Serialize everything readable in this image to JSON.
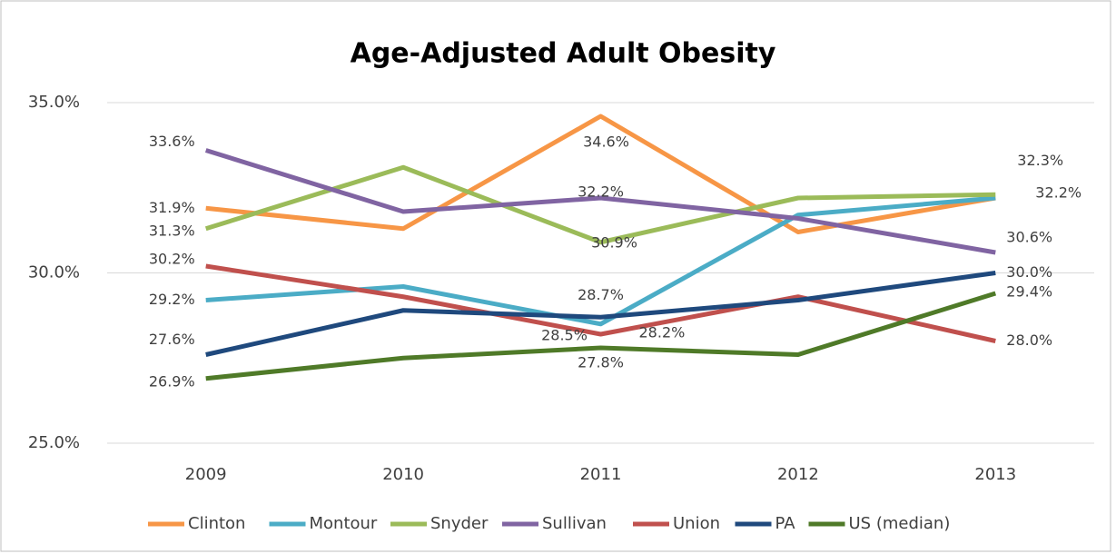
{
  "chart_data": {
    "type": "line",
    "title": "Age-Adjusted Adult Obesity",
    "categories": [
      "2009",
      "2010",
      "2011",
      "2012",
      "2013"
    ],
    "ylim": [
      25,
      35
    ],
    "yticks": [
      {
        "value": 25,
        "label": "25.0%"
      },
      {
        "value": 30,
        "label": "30.0%"
      },
      {
        "value": 35,
        "label": "35.0%"
      }
    ],
    "grid": true,
    "legend": "bottom",
    "series": [
      {
        "name": "Clinton",
        "color": "#f79646",
        "values": [
          31.9,
          31.3,
          34.6,
          31.2,
          32.2
        ],
        "value_labels": [
          "31.9%",
          null,
          "34.6%",
          null,
          null
        ]
      },
      {
        "name": "Montour",
        "color": "#4bacc6",
        "values": [
          29.2,
          29.6,
          28.5,
          31.7,
          32.2
        ],
        "value_labels": [
          "29.2%",
          null,
          "28.5%",
          null,
          "32.2%"
        ]
      },
      {
        "name": "Snyder",
        "color": "#9bbb59",
        "values": [
          31.3,
          33.1,
          30.9,
          32.2,
          32.3
        ],
        "value_labels": [
          "31.3%",
          null,
          "30.9%",
          null,
          "32.3%"
        ]
      },
      {
        "name": "Sullivan",
        "color": "#8064a2",
        "values": [
          33.6,
          31.8,
          32.2,
          31.6,
          30.6
        ],
        "value_labels": [
          "33.6%",
          null,
          "32.2%",
          null,
          "30.6%"
        ]
      },
      {
        "name": "Union",
        "color": "#c0504d",
        "values": [
          30.2,
          29.3,
          28.2,
          29.3,
          28.0
        ],
        "value_labels": [
          "30.2%",
          null,
          "28.2%",
          null,
          "28.0%"
        ]
      },
      {
        "name": "PA",
        "color": "#1f497d",
        "values": [
          27.6,
          28.9,
          28.7,
          29.2,
          30.0
        ],
        "value_labels": [
          "27.6%",
          null,
          "28.7%",
          null,
          "30.0%"
        ]
      },
      {
        "name": "US (median)",
        "color": "#4f7a28",
        "values": [
          26.9,
          27.5,
          27.8,
          27.6,
          29.4
        ],
        "value_labels": [
          "26.9%",
          null,
          "27.8%",
          null,
          "29.4%"
        ]
      }
    ]
  }
}
